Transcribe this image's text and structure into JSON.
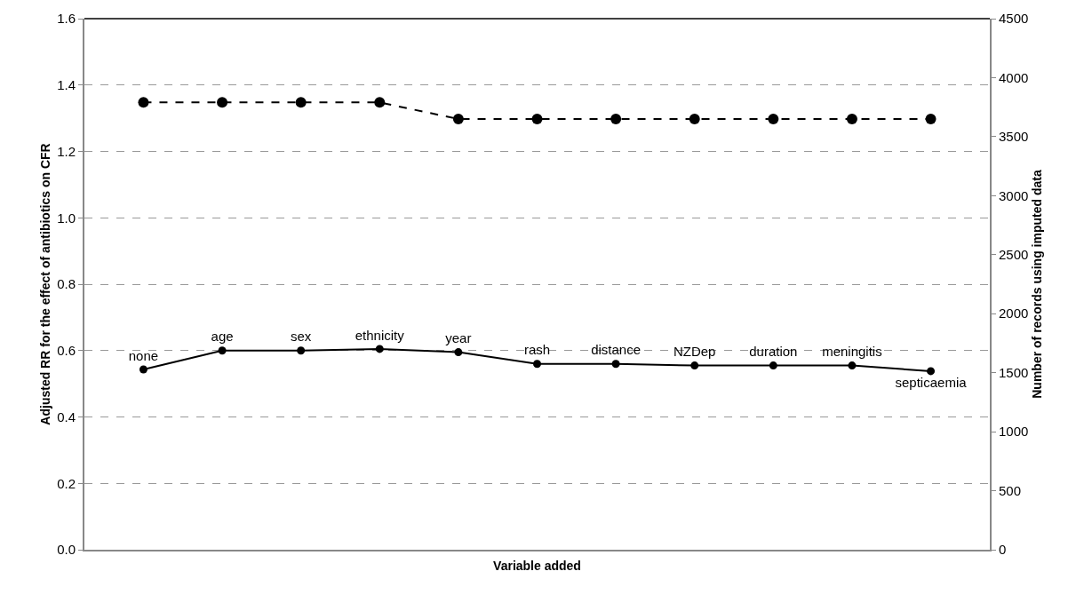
{
  "chart_data": {
    "type": "line",
    "xlabel": "Variable added",
    "ylabel": "Adjusted RR for the effect of antibiotics on CFR",
    "y2label": "Number of records using imputed data",
    "categories": [
      "none",
      "age",
      "sex",
      "ethnicity",
      "year",
      "rash",
      "distance",
      "NZDep",
      "duration",
      "meningitis",
      "septicaemia"
    ],
    "series": [
      {
        "color": "#000000",
        "values": [
          0.543,
          0.6,
          0.6,
          0.605,
          0.595,
          0.56,
          0.56,
          0.555,
          0.555,
          0.555,
          0.538
        ],
        "line_style": "solid"
      },
      {
        "color": "#000000",
        "values": [
          3790,
          3790,
          3790,
          3790,
          3650,
          3650,
          3650,
          3650,
          3650,
          3650,
          3650
        ],
        "axis": "y2",
        "line_style": "dashed"
      }
    ],
    "ylim": [
      0,
      1.6
    ],
    "yticks": [
      {
        "value": 0,
        "label": "0.0"
      },
      0.2,
      0.4,
      0.6,
      0.8,
      {
        "value": 1,
        "label": "1.0"
      },
      1.2,
      1.4,
      1.6
    ],
    "y2lim": [
      0,
      4500
    ],
    "y2ticks": [
      0,
      500,
      1000,
      1500,
      2000,
      2500,
      3000,
      3500,
      4000,
      4500
    ],
    "grid": "y",
    "marker": "circle",
    "tick_labels": "y"
  }
}
